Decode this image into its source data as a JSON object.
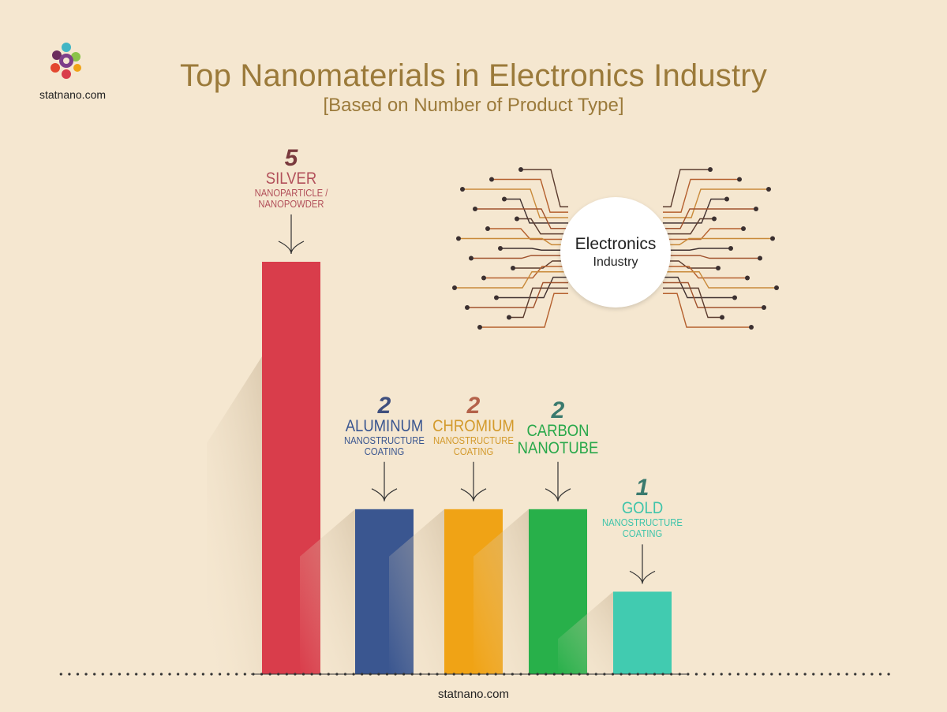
{
  "brand": {
    "name": "statnano.com"
  },
  "header": {
    "title": "Top Nanomaterials in Electronics Industry",
    "subtitle": "[Based on Number of Product Type]"
  },
  "hub": {
    "line1": "Electronics",
    "line2": "Industry"
  },
  "colors": {
    "background": "#f5e7d0",
    "title": "#9b7a3a"
  },
  "chart_data": {
    "type": "bar",
    "title": "Top Nanomaterials in Electronics Industry",
    "subtitle": "[Based on Number of Product Type]",
    "ylim": [
      0,
      5
    ],
    "grid": false,
    "categories": [
      "SILVER",
      "ALUMINUM",
      "CHROMIUM",
      "CARBON NANOTUBE",
      "GOLD"
    ],
    "values": [
      5,
      2,
      2,
      2,
      1
    ],
    "bars": [
      {
        "value": 5,
        "value_label": "5",
        "name": "SILVER",
        "sub": "NANOPARTICLE / NANOPOWDER",
        "color": "#d93d4b",
        "label_color": "#b2505a",
        "value_color": "#7a3a3e"
      },
      {
        "value": 2,
        "value_label": "2",
        "name": "ALUMINUM",
        "sub": "NANOSTRUCTURE COATING",
        "color": "#3a5690",
        "label_color": "#3a5690",
        "value_color": "#3f4f7e"
      },
      {
        "value": 2,
        "value_label": "2",
        "name": "CHROMIUM",
        "sub": "NANOSTRUCTURE COATING",
        "color": "#f0a315",
        "label_color": "#d39a2c",
        "value_color": "#b4624a"
      },
      {
        "value": 2,
        "value_label": "2",
        "name": "CARBON NANOTUBE",
        "sub": "",
        "color": "#28b04a",
        "label_color": "#28a84a",
        "value_color": "#3a7a6e"
      },
      {
        "value": 1,
        "value_label": "1",
        "name": "GOLD",
        "sub": "NANOSTRUCTURE COATING",
        "color": "#41cbb0",
        "label_color": "#3fc4aa",
        "value_color": "#3a7a6e"
      }
    ]
  }
}
